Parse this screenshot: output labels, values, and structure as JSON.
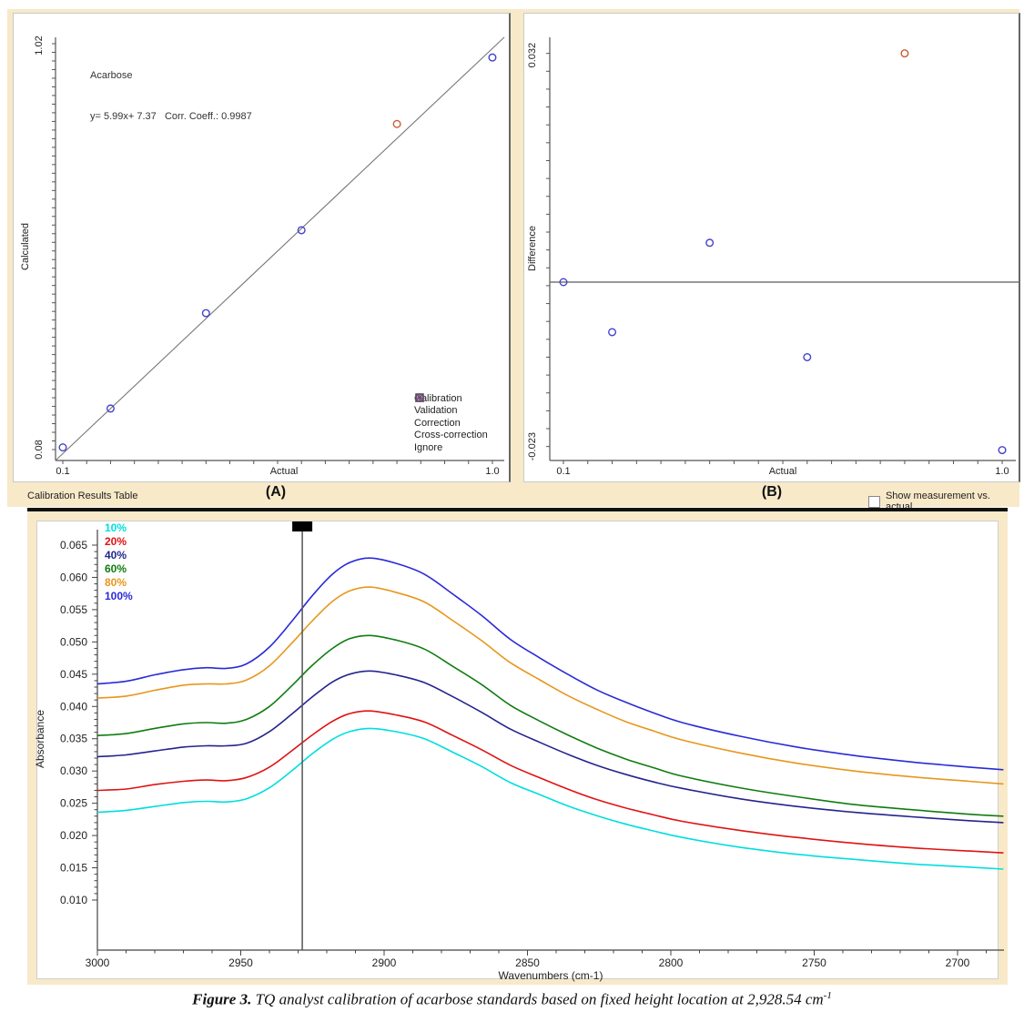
{
  "style": {
    "tan_background": "#f8e9c9",
    "calibration_point_color": "#4242cc",
    "outlier_point_color": "#cc5a33",
    "fit_line_color": "#777777",
    "axis_color": "#555555"
  },
  "band": {
    "results_table_label": "Calibration Results Table",
    "a_label": "(A)",
    "b_label": "(B)",
    "checkbox_label": "Show measurement vs. actual",
    "checkbox_checked": false
  },
  "caption": {
    "prefix": "Figure 3.",
    "body": " TQ analyst calibration of acarbose standards based on fixed height location at 2,928.54 cm",
    "sup": "-1"
  },
  "chart_data": [
    {
      "id": "calibration_scatter",
      "type": "scatter",
      "title": "Acarbose",
      "equation": "y= 5.99x+ 7.37   Corr. Coeff.: 0.9987",
      "xlabel": "Actual",
      "ylabel": "Calculated",
      "xlim": [
        0.1,
        1.0
      ],
      "ylim": [
        0.08,
        1.02
      ],
      "x_first_tick_label": "0.1",
      "x_last_tick_label": "1.0",
      "y_min_tick_label": "0.08",
      "y_max_tick_label": "1.02",
      "x_minor_step": 0.05,
      "y_minor_step": 0.02,
      "fit_line": {
        "x1": 0.085,
        "y1": 0.055,
        "x2": 1.025,
        "y2": 1.035
      },
      "series": [
        {
          "name": "Calibration",
          "marker": "circle",
          "color": "#4242cc",
          "points": [
            [
              0.1,
              0.085
            ],
            [
              0.2,
              0.175
            ],
            [
              0.4,
              0.396
            ],
            [
              0.6,
              0.588
            ],
            [
              1.0,
              0.988
            ]
          ]
        },
        {
          "name": "Flagged",
          "marker": "circle",
          "color": "#cc5a33",
          "points": [
            [
              0.8,
              0.834
            ]
          ]
        }
      ],
      "legend": [
        {
          "label": "Calibration",
          "marker": "circle",
          "color": "#4242cc"
        },
        {
          "label": "Validation",
          "marker": "plus",
          "color": "#8a4a8a"
        },
        {
          "label": "Correction",
          "marker": "triangle",
          "color": "#b455b4"
        },
        {
          "label": "Cross-correction",
          "marker": "square",
          "color": "#b455b4"
        },
        {
          "label": "Ignore",
          "marker": "crossed-square",
          "color": "#555555"
        }
      ]
    },
    {
      "id": "difference_scatter",
      "type": "scatter",
      "xlabel": "Actual",
      "ylabel": "Difference",
      "xlim": [
        0.1,
        1.0
      ],
      "ylim": [
        -0.023,
        0.032
      ],
      "x_first_tick_label": "0.1",
      "x_last_tick_label": "1.0",
      "y_min_tick_label": "-0.023",
      "y_max_tick_label": "0.032",
      "x_minor_step": 0.05,
      "y_minor_step": 0.0025,
      "zero_line_y": 0,
      "series": [
        {
          "name": "Calibration",
          "marker": "circle",
          "color": "#4242cc",
          "points": [
            [
              0.1,
              0.0
            ],
            [
              0.2,
              -0.007
            ],
            [
              0.4,
              0.0055
            ],
            [
              0.6,
              -0.0105
            ],
            [
              1.0,
              -0.0235
            ]
          ]
        },
        {
          "name": "Flagged",
          "marker": "circle",
          "color": "#cc5a33",
          "points": [
            [
              0.8,
              0.032
            ]
          ]
        }
      ]
    },
    {
      "id": "ftir_spectra",
      "type": "line",
      "xlabel": "Wavenumbers (cm-1)",
      "ylabel": "Absorbance",
      "xlim": [
        3000,
        2684
      ],
      "ylim": [
        0.01,
        0.065
      ],
      "xtick_values": [
        3000,
        2950,
        2900,
        2850,
        2800,
        2750,
        2700
      ],
      "xtick_labels": [
        "3000",
        "2950",
        "2900",
        "2850",
        "2800",
        "2750",
        "2700"
      ],
      "ytick_values": [
        0.065,
        0.06,
        0.055,
        0.05,
        0.045,
        0.04,
        0.035,
        0.03,
        0.025,
        0.02,
        0.015,
        0.01
      ],
      "ytick_labels": [
        "0.065",
        "0.060",
        "0.055",
        "0.050",
        "0.045",
        "0.040",
        "0.035",
        "0.030",
        "0.025",
        "0.020",
        "0.015",
        "0.010"
      ],
      "marker_line_x": 2928.54,
      "x": [
        3000,
        2990,
        2980,
        2970,
        2962,
        2955,
        2948,
        2940,
        2932,
        2925,
        2918,
        2912,
        2905,
        2896,
        2886,
        2876,
        2866,
        2856,
        2846,
        2836,
        2826,
        2816,
        2806,
        2796,
        2776,
        2756,
        2736,
        2716,
        2696,
        2684
      ],
      "series": [
        {
          "name": "10%",
          "color": "#00dede",
          "values": [
            0.0236,
            0.0239,
            0.0245,
            0.0251,
            0.0253,
            0.0252,
            0.0257,
            0.0274,
            0.0301,
            0.0327,
            0.0349,
            0.0361,
            0.0366,
            0.0361,
            0.035,
            0.0329,
            0.0307,
            0.0282,
            0.0264,
            0.0246,
            0.0231,
            0.0218,
            0.0207,
            0.0197,
            0.0182,
            0.0171,
            0.0163,
            0.0156,
            0.0151,
            0.0148
          ]
        },
        {
          "name": "20%",
          "color": "#e01212",
          "values": [
            0.027,
            0.0272,
            0.0279,
            0.0284,
            0.0286,
            0.0285,
            0.029,
            0.0306,
            0.0332,
            0.0356,
            0.0377,
            0.0389,
            0.0393,
            0.0387,
            0.0376,
            0.0355,
            0.0333,
            0.0309,
            0.029,
            0.0272,
            0.0256,
            0.0243,
            0.0232,
            0.0222,
            0.0208,
            0.0197,
            0.0188,
            0.0181,
            0.0176,
            0.0173
          ]
        },
        {
          "name": "40%",
          "color": "#24248e",
          "values": [
            0.0322,
            0.0325,
            0.0331,
            0.0337,
            0.0339,
            0.0339,
            0.0343,
            0.0361,
            0.0389,
            0.0415,
            0.0438,
            0.045,
            0.0455,
            0.0449,
            0.0437,
            0.0415,
            0.0391,
            0.0365,
            0.0345,
            0.0326,
            0.0309,
            0.0295,
            0.0283,
            0.0273,
            0.0257,
            0.0245,
            0.0236,
            0.0229,
            0.0223,
            0.022
          ]
        },
        {
          "name": "60%",
          "color": "#107c10",
          "values": [
            0.0355,
            0.0358,
            0.0366,
            0.0373,
            0.0375,
            0.0374,
            0.038,
            0.04,
            0.0433,
            0.0464,
            0.049,
            0.0505,
            0.051,
            0.0503,
            0.0489,
            0.0462,
            0.0434,
            0.0402,
            0.0378,
            0.0356,
            0.0336,
            0.0319,
            0.0305,
            0.0292,
            0.0274,
            0.026,
            0.0248,
            0.024,
            0.0233,
            0.023
          ]
        },
        {
          "name": "80%",
          "color": "#e8961c",
          "values": [
            0.0413,
            0.0416,
            0.0425,
            0.0433,
            0.0435,
            0.0435,
            0.0441,
            0.0463,
            0.0499,
            0.0533,
            0.0563,
            0.0579,
            0.0585,
            0.0577,
            0.0562,
            0.0533,
            0.0502,
            0.0468,
            0.0442,
            0.0417,
            0.0396,
            0.0377,
            0.0362,
            0.0348,
            0.0328,
            0.0312,
            0.03,
            0.0291,
            0.0284,
            0.028
          ]
        },
        {
          "name": "100%",
          "color": "#2a2ad8",
          "values": [
            0.0435,
            0.0439,
            0.0449,
            0.0457,
            0.046,
            0.0459,
            0.0466,
            0.0492,
            0.0533,
            0.0572,
            0.0605,
            0.0623,
            0.063,
            0.0622,
            0.0605,
            0.0574,
            0.0541,
            0.0504,
            0.0476,
            0.045,
            0.0426,
            0.0407,
            0.039,
            0.0375,
            0.0354,
            0.0337,
            0.0324,
            0.0314,
            0.0306,
            0.0302
          ]
        }
      ]
    }
  ]
}
